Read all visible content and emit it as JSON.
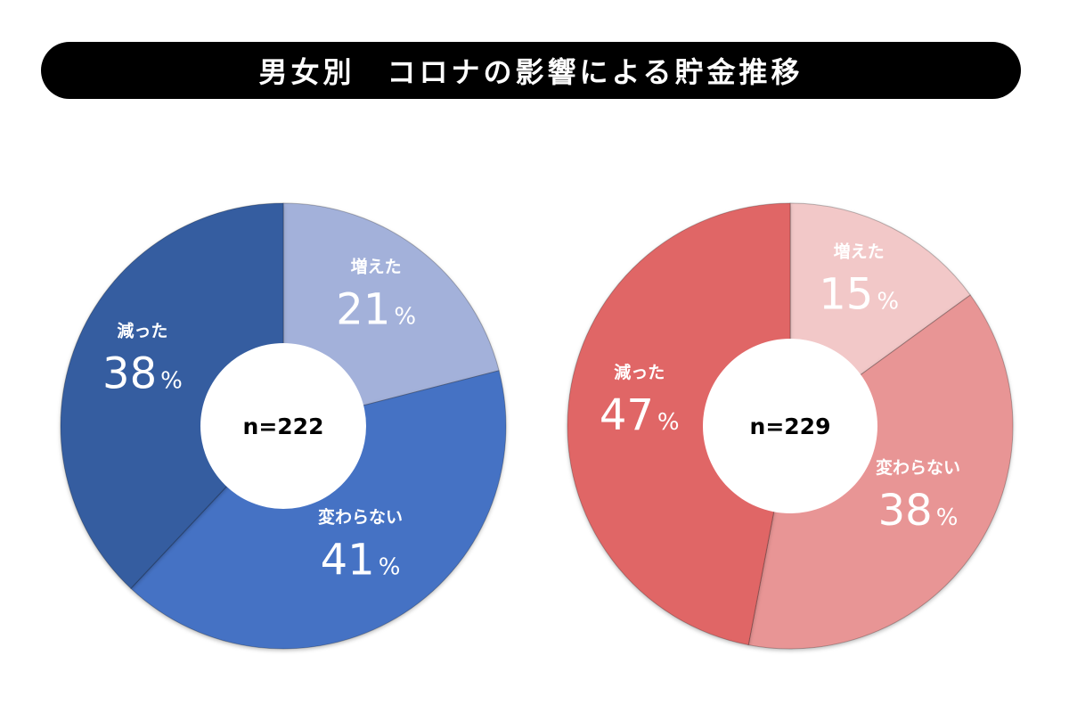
{
  "title": "男女別　コロナの影響による貯金推移",
  "chart_data": [
    {
      "type": "pie",
      "donut": true,
      "n_label": "n=222",
      "slices": [
        {
          "label": "増えた",
          "value": 21,
          "unit": "%",
          "color": "#a3b1da",
          "text_color": "#ffffff"
        },
        {
          "label": "変わらない",
          "value": 41,
          "unit": "%",
          "color": "#4472c4",
          "text_color": "#ffffff"
        },
        {
          "label": "減った",
          "value": 38,
          "unit": "%",
          "color": "#345da0",
          "text_color": "#ffffff"
        }
      ]
    },
    {
      "type": "pie",
      "donut": true,
      "n_label": "n=229",
      "slices": [
        {
          "label": "増えた",
          "value": 15,
          "unit": "%",
          "color": "#f2c8c8",
          "text_color": "#ffffff"
        },
        {
          "label": "変わらない",
          "value": 38,
          "unit": "%",
          "color": "#e89595",
          "text_color": "#ffffff"
        },
        {
          "label": "減った",
          "value": 47,
          "unit": "%",
          "color": "#e06666",
          "text_color": "#ffffff"
        }
      ]
    }
  ]
}
